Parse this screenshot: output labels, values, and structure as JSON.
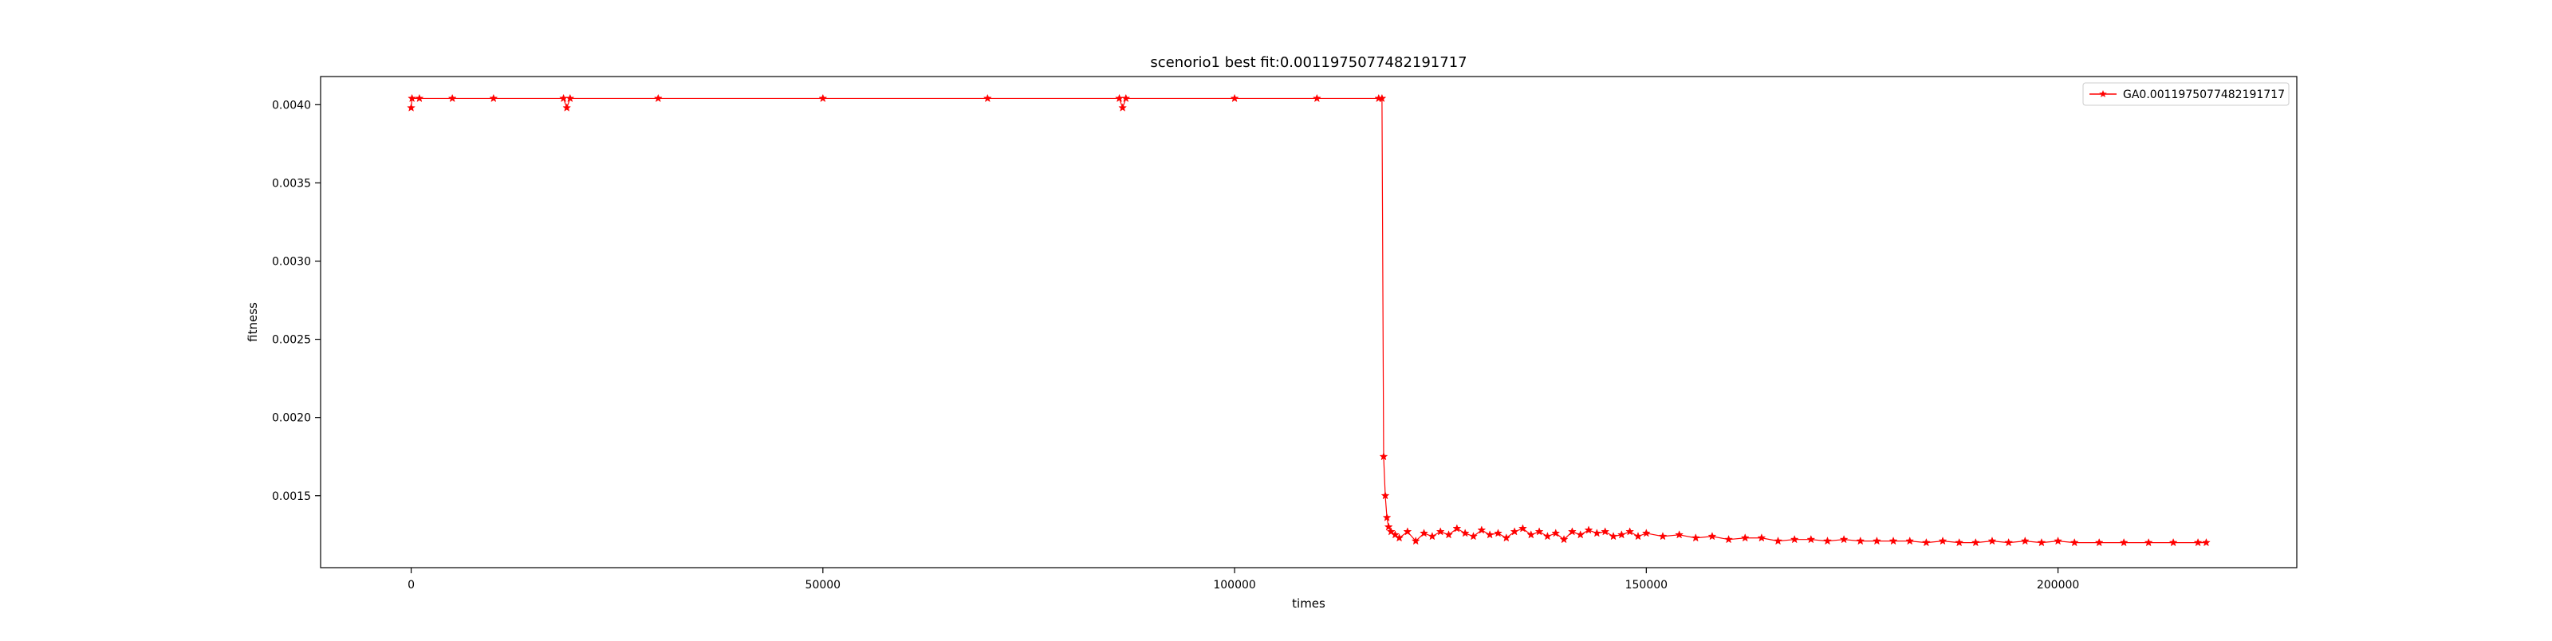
{
  "chart_data": {
    "type": "line",
    "title": "scenorio1 best fit:0.0011975077482191717",
    "xlabel": "times",
    "ylabel": "fitness",
    "xlim": [
      -11000,
      229000
    ],
    "ylim": [
      0.00104,
      0.00418
    ],
    "x_ticks": [
      0,
      50000,
      100000,
      150000,
      200000
    ],
    "x_tick_labels": [
      "0",
      "50000",
      "100000",
      "150000",
      "200000"
    ],
    "y_ticks": [
      0.0015,
      0.002,
      0.0025,
      0.003,
      0.0035,
      0.004
    ],
    "y_tick_labels": [
      "0.0015",
      "0.0020",
      "0.0025",
      "0.0030",
      "0.0035",
      "0.0040"
    ],
    "grid": false,
    "legend_position": "top-right",
    "series": [
      {
        "name": "GA0.0011975077482191717",
        "color": "#ff0000",
        "marker": "star",
        "x": [
          0,
          100,
          1000,
          5000,
          10000,
          18500,
          18900,
          19300,
          30000,
          50000,
          70000,
          86000,
          86400,
          86800,
          100000,
          110000,
          117500,
          117900,
          118100,
          118300,
          118500,
          118700,
          119000,
          119500,
          120000,
          121000,
          122000,
          123000,
          124000,
          125000,
          126000,
          127000,
          128000,
          129000,
          130000,
          131000,
          132000,
          133000,
          134000,
          135000,
          136000,
          137000,
          138000,
          139000,
          140000,
          141000,
          142000,
          143000,
          144000,
          145000,
          146000,
          147000,
          148000,
          149000,
          150000,
          152000,
          154000,
          156000,
          158000,
          160000,
          162000,
          164000,
          166000,
          168000,
          170000,
          172000,
          174000,
          176000,
          178000,
          180000,
          182000,
          184000,
          186000,
          188000,
          190000,
          192000,
          194000,
          196000,
          198000,
          200000,
          202000,
          205000,
          208000,
          211000,
          214000,
          217000,
          218000
        ],
        "y": [
          0.00398,
          0.00404,
          0.00404,
          0.00404,
          0.00404,
          0.00404,
          0.00398,
          0.00404,
          0.00404,
          0.00404,
          0.00404,
          0.00404,
          0.00398,
          0.00404,
          0.00404,
          0.00404,
          0.00404,
          0.00404,
          0.00175,
          0.0015,
          0.00136,
          0.0013,
          0.00127,
          0.00125,
          0.00123,
          0.00127,
          0.00121,
          0.00126,
          0.00124,
          0.00127,
          0.00125,
          0.00129,
          0.00126,
          0.00124,
          0.00128,
          0.00125,
          0.00126,
          0.00123,
          0.00127,
          0.00129,
          0.00125,
          0.00127,
          0.00124,
          0.00126,
          0.00122,
          0.00127,
          0.00125,
          0.00128,
          0.00126,
          0.00127,
          0.00124,
          0.00125,
          0.00127,
          0.00124,
          0.00126,
          0.00124,
          0.00125,
          0.00123,
          0.00124,
          0.00122,
          0.00123,
          0.00123,
          0.00121,
          0.00122,
          0.00122,
          0.00121,
          0.00122,
          0.00121,
          0.00121,
          0.00121,
          0.00121,
          0.0012,
          0.00121,
          0.0012,
          0.0012,
          0.00121,
          0.0012,
          0.00121,
          0.0012,
          0.00121,
          0.0012,
          0.0012,
          0.0012,
          0.0012,
          0.0012,
          0.0012,
          0.0012
        ]
      }
    ]
  }
}
